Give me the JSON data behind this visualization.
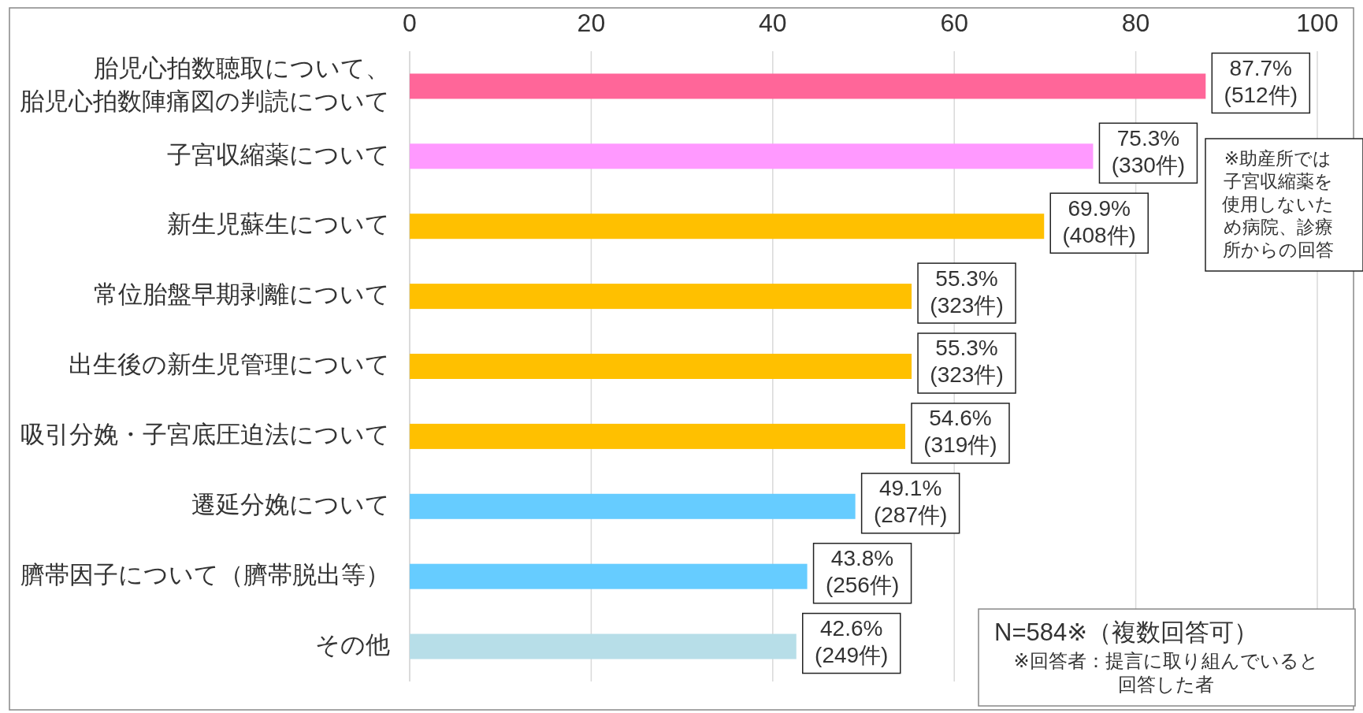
{
  "chart_data": {
    "type": "bar",
    "orientation": "horizontal",
    "categories": [
      "胎児心拍数聴取について、胎児心拍数陣痛図の判読について",
      "子宮収縮薬について",
      "新生児蘇生について",
      "常位胎盤早期剥離について",
      "出生後の新生児管理について",
      "吸引分娩・子宮底圧迫法について",
      "遷延分娩について",
      "臍帯因子について（臍帯脱出等）",
      "その他"
    ],
    "values": [
      87.7,
      75.3,
      69.9,
      55.3,
      55.3,
      54.6,
      49.1,
      43.8,
      42.6
    ],
    "colors": [
      "#ff6699",
      "#ff99ff",
      "#ffc000",
      "#ffc000",
      "#ffc000",
      "#ffc000",
      "#66ccff",
      "#66ccff",
      "#b7dee8"
    ],
    "value_labels": [
      "87.7%\n(512件)",
      "75.3%\n(330件)",
      "69.9%\n(408件)",
      "55.3%\n(323件)",
      "55.3%\n(323件)",
      "54.6%\n(319件)",
      "49.1%\n(287件)",
      "43.8%\n(256件)",
      "42.6%\n(249件)"
    ],
    "xlim": [
      0,
      100
    ],
    "xticks": [
      0,
      20,
      40,
      60,
      80,
      100
    ],
    "grid": "x",
    "annotations": [
      "※助産所では子宮収縮薬を使用しないため病院、診療所からの回答",
      "N=584※（複数回答可）",
      "※回答者：提言に取り組んでいると回答した者"
    ]
  }
}
